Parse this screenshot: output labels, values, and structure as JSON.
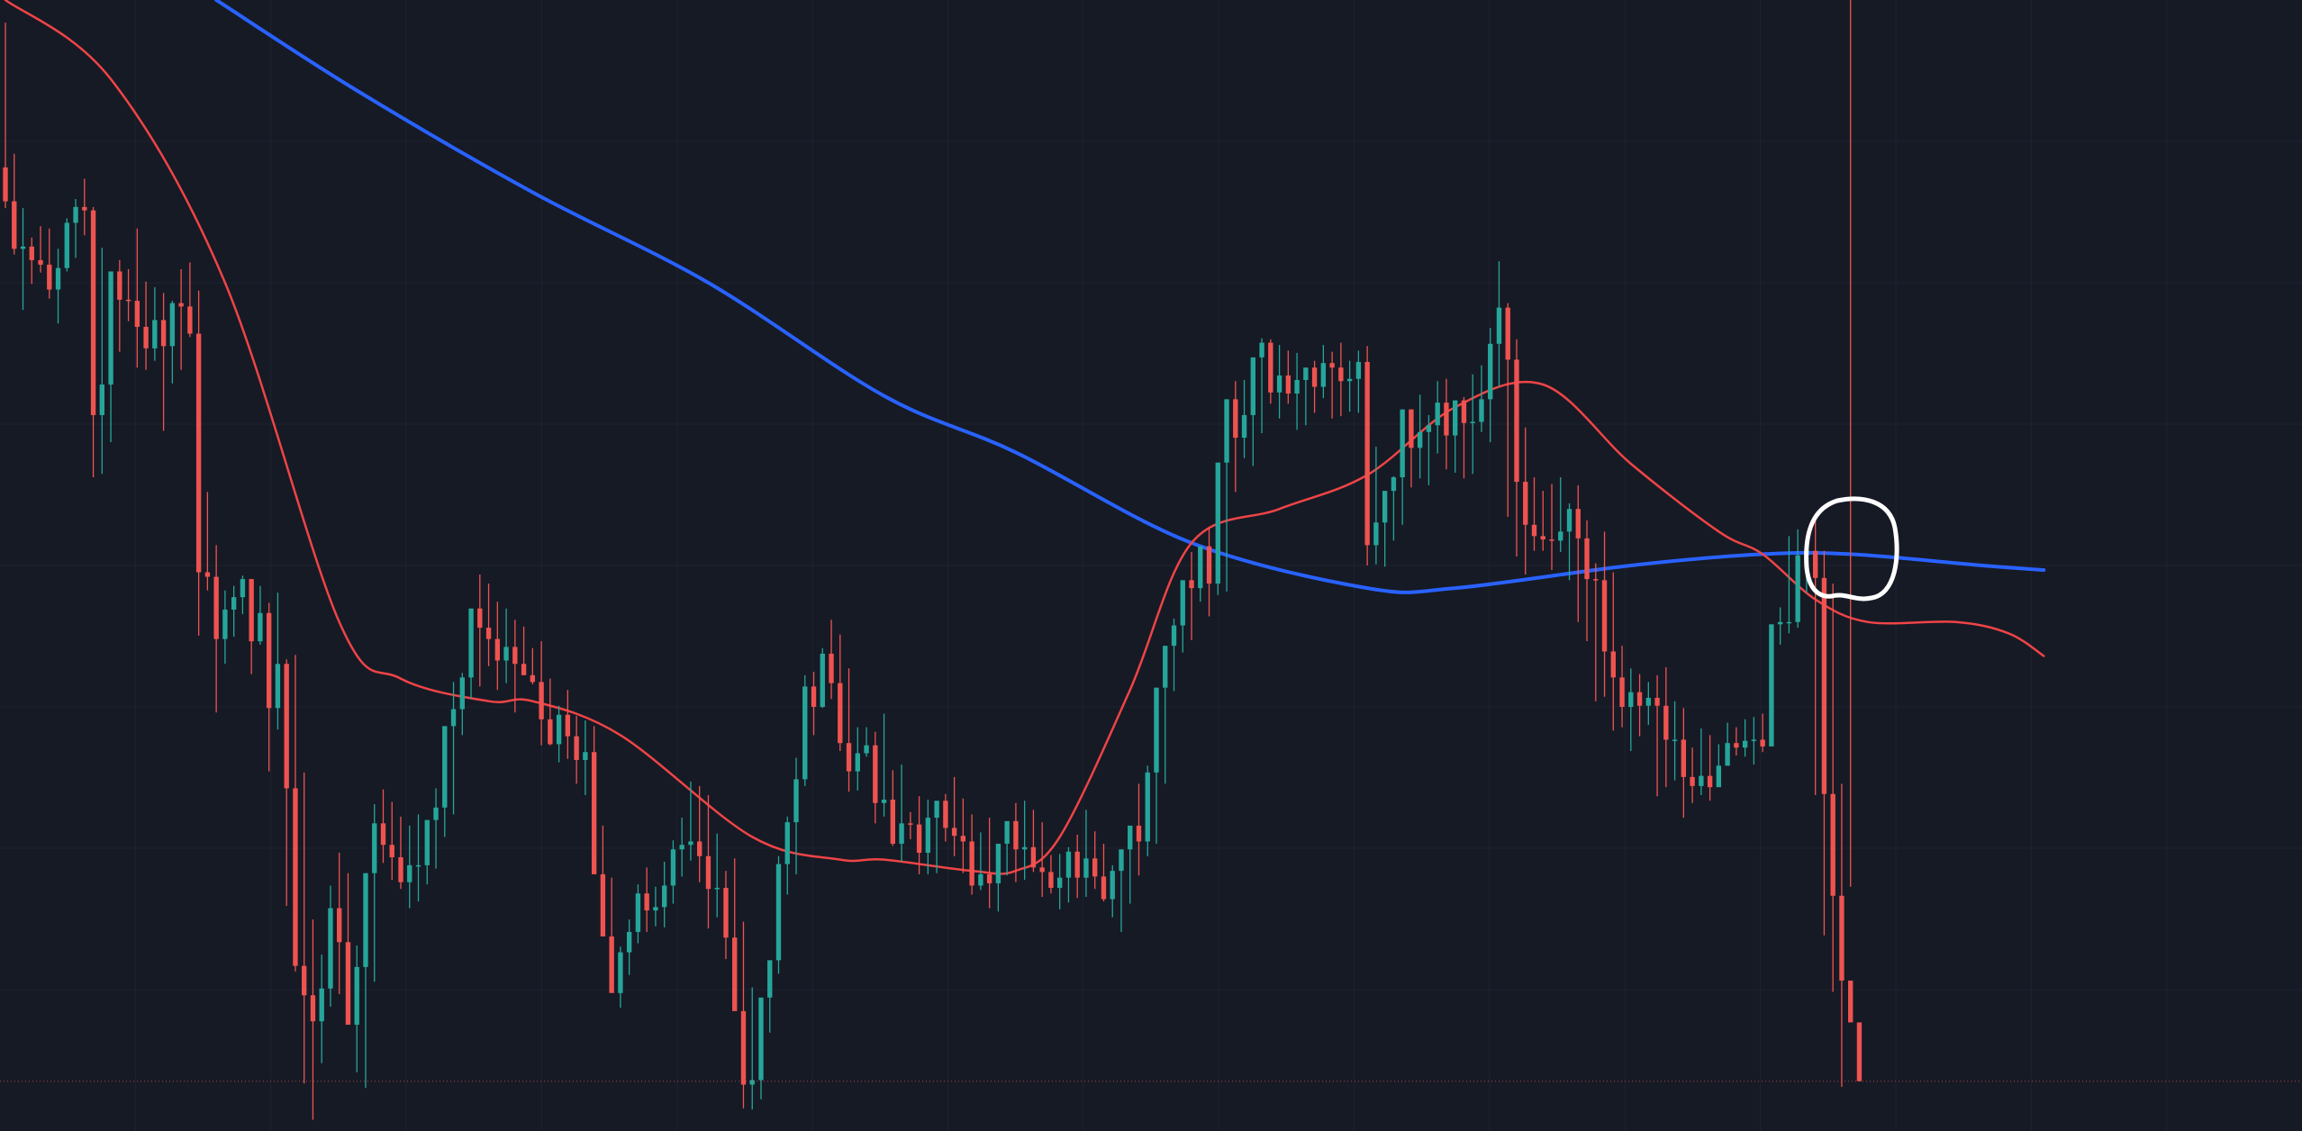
{
  "colors": {
    "background": "#161a25",
    "grid": "#1f2331",
    "bull": "#26a69a",
    "bear": "#ef5350",
    "ma_fast": "#ef4446",
    "ma_slow": "#2962ff",
    "price_line": "#ef5350",
    "annotation": "#ffffff"
  },
  "chart_data": {
    "type": "candlestick",
    "title": "",
    "xlabel": "",
    "ylabel": "",
    "grid": true,
    "legend": "none",
    "x": [
      0,
      1,
      2,
      3,
      4,
      5,
      6,
      7,
      8,
      9,
      10,
      11,
      12,
      13,
      14,
      15,
      16,
      17,
      18,
      19,
      20,
      21,
      22,
      23,
      24,
      25,
      26,
      27,
      28,
      29,
      30,
      31,
      32,
      33,
      34,
      35,
      36,
      37,
      38,
      39,
      40,
      41,
      42,
      43,
      44,
      45,
      46,
      47,
      48,
      49,
      50,
      51,
      52,
      53,
      54,
      55,
      56,
      57,
      58,
      59,
      60,
      61,
      62,
      63,
      64,
      65,
      66,
      67,
      68,
      69,
      70,
      71,
      72,
      73,
      74,
      75,
      76,
      77,
      78,
      79,
      80,
      81,
      82,
      83,
      84,
      85,
      86,
      87,
      88,
      89,
      90,
      91,
      92,
      93,
      94,
      95,
      96,
      97,
      98,
      99,
      100,
      101,
      102,
      103,
      104,
      105,
      106,
      107,
      108,
      109,
      110,
      111,
      112,
      113,
      114,
      115,
      116,
      117,
      118,
      119,
      120,
      121,
      122,
      123,
      124,
      125,
      126,
      127,
      128,
      129,
      130,
      131,
      132,
      133,
      134,
      135,
      136,
      137,
      138,
      139,
      140,
      141,
      142,
      143,
      144,
      145,
      146,
      147,
      148,
      149,
      150,
      151,
      152,
      153,
      154,
      155,
      156,
      157,
      158,
      159,
      160,
      161,
      162,
      163,
      164,
      165,
      166,
      167,
      168,
      169,
      170,
      171,
      172,
      173,
      174,
      175,
      176,
      177,
      178,
      179,
      180,
      181,
      182,
      183,
      184,
      185,
      186,
      187,
      188,
      189,
      190,
      191,
      192,
      193,
      194,
      195,
      196,
      197,
      198,
      199,
      200,
      201,
      202,
      203,
      204,
      205,
      206,
      207,
      208,
      209,
      210,
      211,
      212,
      213,
      214,
      215,
      216,
      217,
      218,
      219,
      220,
      221,
      222,
      223,
      224,
      225,
      226,
      227,
      228,
      229,
      230,
      231
    ],
    "xlim": [
      0,
      262
    ],
    "ylim": [
      0,
      100
    ],
    "series": [
      {
        "kind": "ohlc",
        "open": [
          85.2,
          82.2,
          78.0,
          78.2,
          77.0,
          76.6,
          74.4,
          76.3,
          80.3,
          81.7,
          81.4,
          63.3,
          66.0,
          76.0,
          73.5,
          73.4,
          71.1,
          69.2,
          71.7,
          69.4,
          73.2,
          72.9,
          70.5,
          49.4,
          49.0,
          43.5,
          46.1,
          47.2,
          48.8,
          43.3,
          45.8,
          37.4,
          41.3,
          30.3,
          14.6,
          12.0,
          9.7,
          12.6,
          19.7,
          16.7,
          9.4,
          14.5,
          22.8,
          27.2,
          25.3,
          24.2,
          22.0,
          23.5,
          23.5,
          27.5,
          28.6,
          35.8,
          37.3,
          40.1,
          46.2,
          44.5,
          43.5,
          41.6,
          42.8,
          41.3,
          40.3,
          39.7,
          36.4,
          34.2,
          36.8,
          34.9,
          32.8,
          33.5,
          22.7,
          17.2,
          12.2,
          15.8,
          17.6,
          21.0,
          19.5,
          19.8,
          21.7,
          24.9,
          25.3,
          25.6,
          24.3,
          21.4,
          21.5,
          17.1,
          10.6,
          4.1,
          4.5,
          11.8,
          15.1,
          23.6,
          27.3,
          31.1,
          39.3,
          37.5,
          42.2,
          39.6,
          34.3,
          31.8,
          33.4,
          34.1,
          29.0,
          29.3,
          25.4,
          27.2,
          27.1,
          24.6,
          27.7,
          29.2,
          26.8,
          26.1,
          25.6,
          21.7,
          22.7,
          21.9,
          25.4,
          27.4,
          24.9,
          25.1,
          23.3,
          22.9,
          21.5,
          22.4,
          24.7,
          22.4,
          24.1,
          22.5,
          20.5,
          23.0,
          24.9,
          27.0,
          25.6,
          31.7,
          39.2,
          42.9,
          44.7,
          48.7,
          48.0,
          51.7,
          48.4,
          59.1,
          64.7,
          61.3,
          63.3,
          68.4,
          69.7,
          65.3,
          66.8,
          65.2,
          66.4,
          67.5,
          65.8,
          67.9,
          67.5,
          66.3,
          66.5,
          68.0,
          51.8,
          53.8,
          56.6,
          57.8,
          63.8,
          60.4,
          61.8,
          62.4,
          64.4,
          61.5,
          64.6,
          62.6,
          62.7,
          64.7,
          69.6,
          72.8,
          68.2,
          57.4,
          53.6,
          52.6,
          52.3,
          52.2,
          53.0,
          55.0,
          52.4,
          48.8,
          48.7,
          42.4,
          40.1,
          37.5,
          38.8,
          37.6,
          38.3,
          37.6,
          34.6,
          34.6,
          31.3,
          30.5,
          31.4,
          30.4,
          32.3,
          34.3,
          33.9,
          34.5,
          34.6,
          34.0,
          44.8,
          45.0,
          45.0,
          50.9,
          51.3,
          48.9,
          29.8,
          20.8,
          13.3,
          9.6
        ],
        "high": [
          98.0,
          86.4,
          81.6,
          79.0,
          80.0,
          79.8,
          78.0,
          80.7,
          82.4,
          84.2,
          81.7,
          78.1,
          66.2,
          77.0,
          76.2,
          79.8,
          75.1,
          74.6,
          74.1,
          73.4,
          76.2,
          76.8,
          74.3,
          56.5,
          51.8,
          47.8,
          48.2,
          49.1,
          48.8,
          48.2,
          46.7,
          47.6,
          41.7,
          42.1,
          31.7,
          18.7,
          15.6,
          21.7,
          24.6,
          22.8,
          16.4,
          15.6,
          28.9,
          30.2,
          29.1,
          27.8,
          27.0,
          28.0,
          26.4,
          30.3,
          29.2,
          39.7,
          40.5,
          41.7,
          49.2,
          48.4,
          46.8,
          46.2,
          45.2,
          44.6,
          42.7,
          43.3,
          40.0,
          37.6,
          39.0,
          36.7,
          36.3,
          35.8,
          27.0,
          22.4,
          16.3,
          18.7,
          21.8,
          23.3,
          21.6,
          23.8,
          25.7,
          27.7,
          30.9,
          30.5,
          29.7,
          26.3,
          23.0,
          24.1,
          18.5,
          12.7,
          10.1,
          13.5,
          24.3,
          27.8,
          33.0,
          40.3,
          40.6,
          42.7,
          45.2,
          43.9,
          40.9,
          35.7,
          35.7,
          35.3,
          36.9,
          31.9,
          32.4,
          28.2,
          29.6,
          29.3,
          28.8,
          29.8,
          31.3,
          29.4,
          28.0,
          26.4,
          27.7,
          24.6,
          25.8,
          29.0,
          29.2,
          28.4,
          27.3,
          24.4,
          24.5,
          25.1,
          26.2,
          28.4,
          26.5,
          25.4,
          23.5,
          23.6,
          26.3,
          30.7,
          32.3,
          35.2,
          41.0,
          45.3,
          47.4,
          51.2,
          50.8,
          53.4,
          55.1,
          61.6,
          66.3,
          66.4,
          64.6,
          70.1,
          70.0,
          69.5,
          69.0,
          68.8,
          67.2,
          68.1,
          69.5,
          68.9,
          69.7,
          68.1,
          69.0,
          69.4,
          60.5,
          56.5,
          57.9,
          59.6,
          63.8,
          65.1,
          63.3,
          66.3,
          66.5,
          64.2,
          64.9,
          66.9,
          67.7,
          71.0,
          76.9,
          73.2,
          70.0,
          62.2,
          57.8,
          56.6,
          57.2,
          57.8,
          55.5,
          57.1,
          54.0,
          50.2,
          53.0,
          49.4,
          42.9,
          40.9,
          40.4,
          39.7,
          40.3,
          41.0,
          38.0,
          37.4,
          33.9,
          35.6,
          35.0,
          34.2,
          36.1,
          35.7,
          36.4,
          36.6,
          36.9,
          40.2,
          46.3,
          52.6,
          53.2,
          52.4,
          54.6,
          51.3,
          48.4,
          30.7,
          21.6
        ],
        "low": [
          81.6,
          77.5,
          72.6,
          74.9,
          75.9,
          73.6,
          71.4,
          76.0,
          77.2,
          79.2,
          57.8,
          58.1,
          60.9,
          68.9,
          71.6,
          67.5,
          67.3,
          68.1,
          61.9,
          66.1,
          67.3,
          70.2,
          43.8,
          47.8,
          37.0,
          41.3,
          43.7,
          45.7,
          40.4,
          43.0,
          31.8,
          35.5,
          19.9,
          14.1,
          4.2,
          1.0,
          6.0,
          11.0,
          12.1,
          9.6,
          5.2,
          3.8,
          13.2,
          23.7,
          22.2,
          21.4,
          19.7,
          20.3,
          21.8,
          23.2,
          26.0,
          28.0,
          35.0,
          38.2,
          39.3,
          41.1,
          39.0,
          39.6,
          37.0,
          40.4,
          39.5,
          34.1,
          34.1,
          32.6,
          32.9,
          30.7,
          29.7,
          25.0,
          17.9,
          13.6,
          10.9,
          13.8,
          16.6,
          17.6,
          18.1,
          18.0,
          20.1,
          22.5,
          23.9,
          22.0,
          17.9,
          18.9,
          15.2,
          12.3,
          2.0,
          1.9,
          2.8,
          8.7,
          13.9,
          20.9,
          22.7,
          30.5,
          35.0,
          37.4,
          38.2,
          33.6,
          30.0,
          30.1,
          33.1,
          27.2,
          27.8,
          25.2,
          23.8,
          25.8,
          22.7,
          22.7,
          22.8,
          25.6,
          24.3,
          22.8,
          20.9,
          21.3,
          19.7,
          19.4,
          22.6,
          22.0,
          22.2,
          22.9,
          20.7,
          21.0,
          19.6,
          20.2,
          20.6,
          20.7,
          21.4,
          20.3,
          18.9,
          17.6,
          20.1,
          22.6,
          24.3,
          25.4,
          30.7,
          38.9,
          42.3,
          43.4,
          46.8,
          45.5,
          47.4,
          47.7,
          56.5,
          59.5,
          58.8,
          61.7,
          64.3,
          63.0,
          64.3,
          62.0,
          62.4,
          63.5,
          64.8,
          63.0,
          63.2,
          63.6,
          63.5,
          50.0,
          50.1,
          49.9,
          52.2,
          53.6,
          56.9,
          57.7,
          57.1,
          59.9,
          58.5,
          58.2,
          57.7,
          58.1,
          61.8,
          60.9,
          65.8,
          54.3,
          50.8,
          49.2,
          51.3,
          51.3,
          49.6,
          51.2,
          48.7,
          45.0,
          43.3,
          38.0,
          38.4,
          35.4,
          35.7,
          33.6,
          34.9,
          35.9,
          29.6,
          30.4,
          31.0,
          27.7,
          29.0,
          29.7,
          29.2,
          31.6,
          32.3,
          33.2,
          33.1,
          32.4,
          33.5,
          44.0,
          43.0,
          44.0,
          44.5,
          47.6,
          29.7,
          17.3,
          12.3,
          3.9
        ],
        "close": [
          82.2,
          78.0,
          78.2,
          77.0,
          76.6,
          74.4,
          76.3,
          80.3,
          81.7,
          81.4,
          63.3,
          66.0,
          76.0,
          73.5,
          73.4,
          71.1,
          69.2,
          71.7,
          69.4,
          73.2,
          72.9,
          70.5,
          49.4,
          49.0,
          43.5,
          46.1,
          47.2,
          48.8,
          43.3,
          45.8,
          37.4,
          41.3,
          30.3,
          14.6,
          12.0,
          9.7,
          12.6,
          19.7,
          16.7,
          9.4,
          14.5,
          22.8,
          27.2,
          25.3,
          24.2,
          22.0,
          23.5,
          23.5,
          27.5,
          28.6,
          35.8,
          37.3,
          40.1,
          46.2,
          44.5,
          43.5,
          41.6,
          42.8,
          41.3,
          40.3,
          39.7,
          36.4,
          34.2,
          36.8,
          34.9,
          32.8,
          33.5,
          22.7,
          17.2,
          12.2,
          15.8,
          17.6,
          21.0,
          19.5,
          19.8,
          21.7,
          24.9,
          25.3,
          25.6,
          24.3,
          21.4,
          21.5,
          17.1,
          10.6,
          4.1,
          4.5,
          11.8,
          15.1,
          23.6,
          27.3,
          31.1,
          39.3,
          37.5,
          42.2,
          39.6,
          34.3,
          31.8,
          33.4,
          34.1,
          29.0,
          29.3,
          25.4,
          27.2,
          27.1,
          24.6,
          27.7,
          29.2,
          26.8,
          26.1,
          25.6,
          21.7,
          22.7,
          21.9,
          25.4,
          27.4,
          24.9,
          25.1,
          23.3,
          22.9,
          21.5,
          22.4,
          24.7,
          22.4,
          24.1,
          22.5,
          20.5,
          23.0,
          24.9,
          27.0,
          25.6,
          31.7,
          39.2,
          42.9,
          44.7,
          48.7,
          48.0,
          51.7,
          48.4,
          59.1,
          64.7,
          61.3,
          63.3,
          68.4,
          69.7,
          65.3,
          66.8,
          65.2,
          66.4,
          67.5,
          65.8,
          67.9,
          67.5,
          66.3,
          66.5,
          68.0,
          51.8,
          53.8,
          56.6,
          57.8,
          63.8,
          60.4,
          61.8,
          62.4,
          64.4,
          61.5,
          64.6,
          62.6,
          62.7,
          64.7,
          69.6,
          72.8,
          68.2,
          57.4,
          53.6,
          52.6,
          52.3,
          52.2,
          53.0,
          55.0,
          52.4,
          48.8,
          48.7,
          42.4,
          40.1,
          37.5,
          38.8,
          37.6,
          38.3,
          37.6,
          34.6,
          34.6,
          31.3,
          30.5,
          31.4,
          30.4,
          32.3,
          34.3,
          33.9,
          34.5,
          34.6,
          34.0,
          44.8,
          45.0,
          45.0,
          50.9,
          51.3,
          48.9,
          29.8,
          20.8,
          13.3,
          9.6,
          4.4
        ]
      },
      {
        "kind": "line",
        "color_key": "ma_fast",
        "x": [
          0,
          12,
          25,
          38,
          45,
          55,
          60,
          70,
          85,
          95,
          100,
          110,
          115,
          120,
          128,
          135,
          145,
          155,
          165,
          175,
          185,
          195,
          200,
          206,
          212,
          222,
          228,
          232
        ],
        "values": [
          100,
          93,
          75,
          45,
          40,
          38,
          38,
          35,
          26,
          24,
          24,
          23,
          23,
          26,
          39,
          52,
          55,
          58,
          64,
          66,
          59,
          53,
          51,
          47,
          45,
          45,
          44,
          42
        ]
      },
      {
        "kind": "line",
        "color_key": "ma_slow",
        "x": [
          24,
          40,
          60,
          80,
          100,
          115,
          135,
          155,
          165,
          185,
          200,
          210,
          225,
          232
        ],
        "values": [
          100,
          92,
          83,
          75,
          65,
          60,
          52,
          48,
          48,
          50,
          51,
          51,
          50,
          49.6
        ]
      }
    ],
    "price_line": 4.4
  },
  "annotation": {
    "shape": "hand-drawn-circle"
  }
}
